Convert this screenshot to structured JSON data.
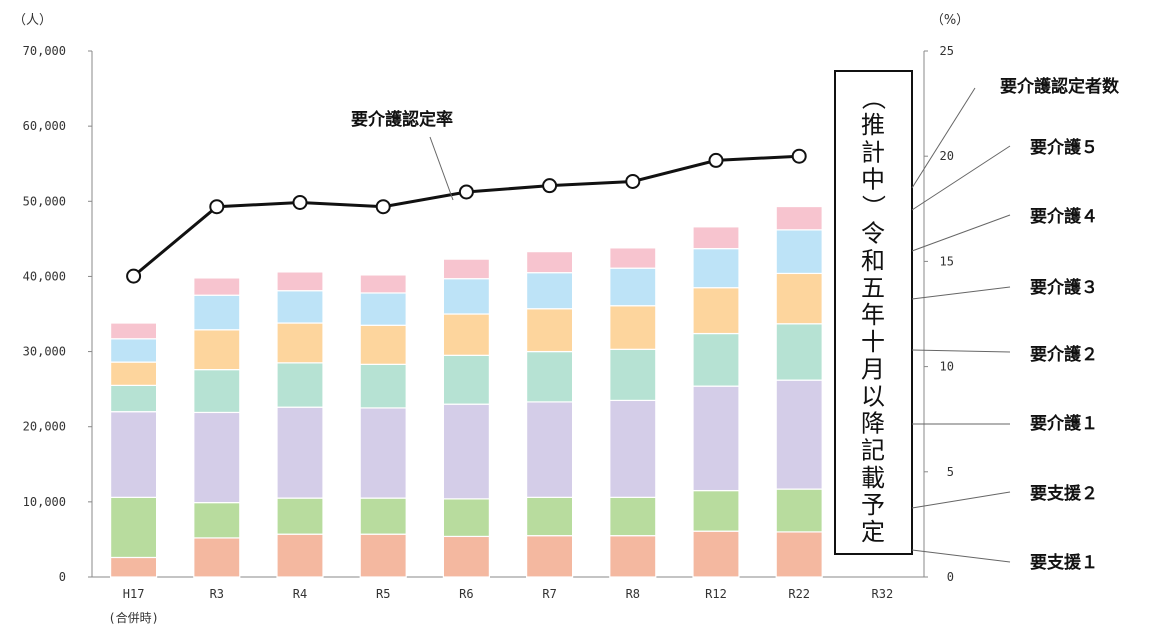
{
  "chart_data": {
    "type": "bar",
    "stacked": true,
    "categories": [
      "H17",
      "R3",
      "R4",
      "R5",
      "R6",
      "R7",
      "R8",
      "R12",
      "R22",
      "R32"
    ],
    "category_sublabels": [
      "(合併時)",
      "",
      "",
      "",
      "",
      "",
      "",
      "",
      "",
      ""
    ],
    "left_axis": {
      "unit": "（人）",
      "ylim": [
        0,
        70000
      ],
      "ticks": [
        "0",
        "10,000",
        "20,000",
        "30,000",
        "40,000",
        "50,000",
        "60,000",
        "70,000"
      ]
    },
    "right_axis": {
      "unit": "（%）",
      "ylim": [
        0,
        25
      ],
      "ticks": [
        "0",
        "5",
        "10",
        "15",
        "20",
        "25"
      ]
    },
    "series": [
      {
        "name": "要支援１",
        "color": "#f4b8a0",
        "values": [
          2600,
          5200,
          5700,
          5700,
          5400,
          5500,
          5500,
          6100,
          6000,
          null
        ]
      },
      {
        "name": "要支援２",
        "color": "#b8dc9e",
        "values": [
          8000,
          4700,
          4800,
          4800,
          5000,
          5100,
          5100,
          5400,
          5700,
          null
        ]
      },
      {
        "name": "要介護１",
        "color": "#d4cde8",
        "values": [
          11400,
          12000,
          12100,
          12000,
          12600,
          12700,
          12900,
          13900,
          14500,
          null
        ]
      },
      {
        "name": "要介護２",
        "color": "#b6e2d3",
        "values": [
          3500,
          5700,
          5900,
          5800,
          6500,
          6700,
          6800,
          7000,
          7500,
          null
        ]
      },
      {
        "name": "要介護３",
        "color": "#fdd59d",
        "values": [
          3100,
          5300,
          5300,
          5200,
          5500,
          5700,
          5800,
          6100,
          6700,
          null
        ]
      },
      {
        "name": "要介護４",
        "color": "#bde3f7",
        "values": [
          3100,
          4600,
          4300,
          4300,
          4700,
          4800,
          5000,
          5200,
          5800,
          null
        ]
      },
      {
        "name": "要介護５",
        "color": "#f7c4cf",
        "values": [
          2100,
          2300,
          2500,
          2400,
          2600,
          2800,
          2700,
          2900,
          3100,
          null
        ]
      }
    ],
    "line_series": {
      "name": "要介護認定率",
      "axis": "right",
      "values": [
        14.3,
        17.6,
        17.8,
        17.6,
        18.3,
        18.6,
        18.8,
        19.8,
        20.0,
        null
      ]
    },
    "legend_title": "要介護認定者数",
    "legend_labels": [
      "要介護認定者数",
      "要介護５",
      "要介護４",
      "要介護３",
      "要介護２",
      "要介護１",
      "要支援２",
      "要支援１"
    ],
    "line_label": "要介護認定率",
    "note": "（推計中）令和五年十月以降記載予定"
  }
}
